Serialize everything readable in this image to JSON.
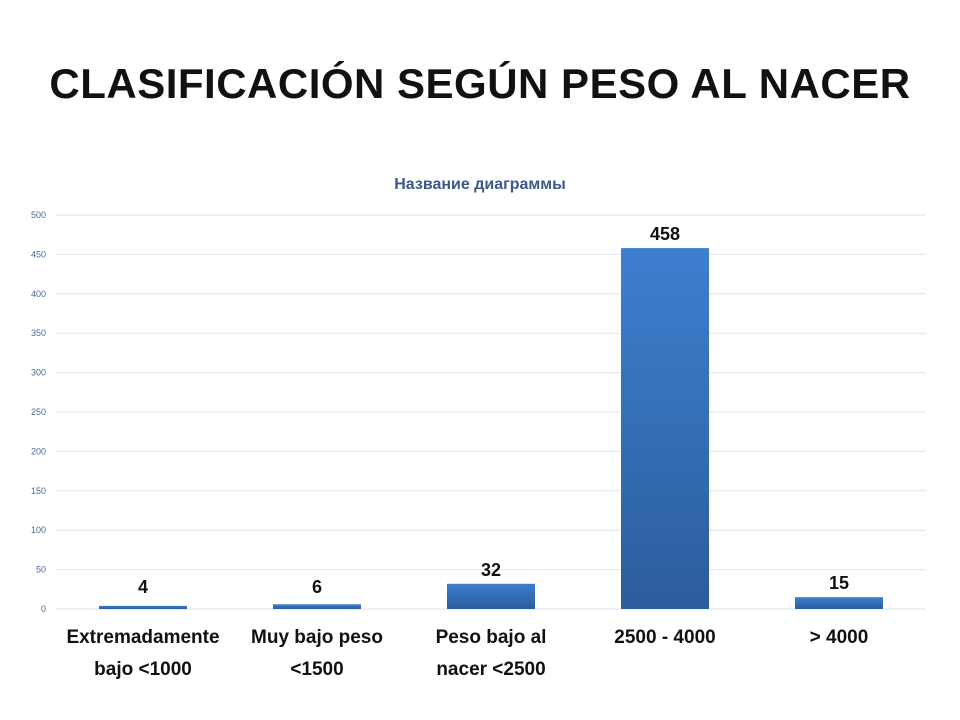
{
  "slide": {
    "title": "CLASIFICACIÓN SEGÚN PESO AL NACER"
  },
  "chart_data": {
    "type": "bar",
    "title": "Название диаграммы",
    "categories": [
      [
        "Extremadamente",
        "bajo <1000"
      ],
      [
        "Muy bajo peso",
        "<1500"
      ],
      [
        "Peso bajo al",
        "nacer <2500"
      ],
      [
        "2500 - 4000"
      ],
      [
        "> 4000"
      ]
    ],
    "values": [
      4,
      6,
      32,
      458,
      15
    ],
    "data_labels": [
      "4",
      "6",
      "32",
      "458",
      "15"
    ],
    "yticks": [
      0,
      50,
      100,
      150,
      200,
      250,
      300,
      350,
      400,
      450,
      500
    ],
    "ylim": [
      0,
      500
    ],
    "xlabel": "",
    "ylabel": "",
    "grid": true,
    "legend": false,
    "colors": {
      "bar_top": "#3d7fcf",
      "bar_bottom": "#2c5d9c",
      "grid": "#dbe4ee"
    }
  }
}
